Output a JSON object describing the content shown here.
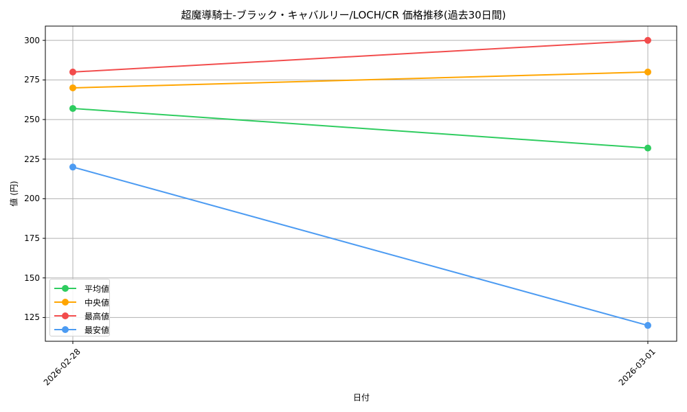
{
  "chart_data": {
    "type": "line",
    "title": "超魔導騎士-ブラック・キャバルリー/LOCH/CR 価格推移(過去30日間)",
    "xlabel": "日付",
    "ylabel": "値 (円)",
    "x": [
      "2026-02-28",
      "2026-03-01"
    ],
    "series": [
      {
        "name": "平均値",
        "color": "#2ecc5f",
        "values": [
          257,
          232
        ]
      },
      {
        "name": "中央値",
        "color": "#ffa500",
        "values": [
          270,
          280
        ]
      },
      {
        "name": "最高値",
        "color": "#f24c4c",
        "values": [
          280,
          300
        ]
      },
      {
        "name": "最安値",
        "color": "#4c9bf2",
        "values": [
          220,
          120
        ]
      }
    ],
    "yticks": [
      125,
      150,
      175,
      200,
      225,
      250,
      275,
      300
    ],
    "ylim": [
      110.0,
      309.0
    ],
    "grid": true,
    "legend_position": "lower left"
  }
}
